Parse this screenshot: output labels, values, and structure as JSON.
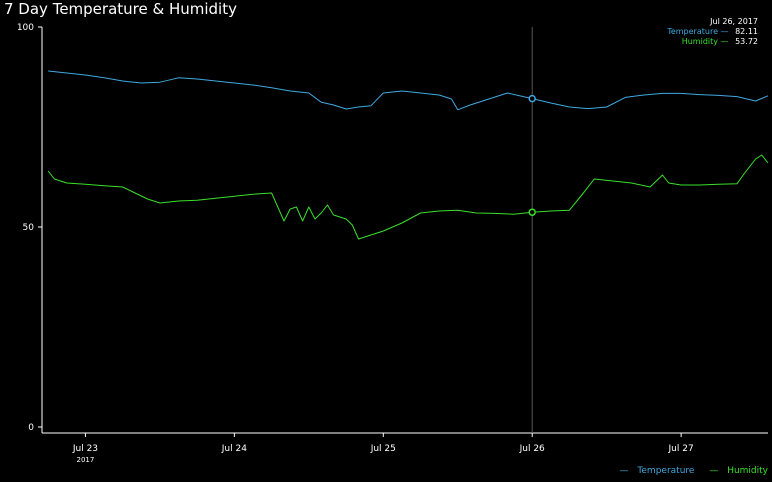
{
  "page": {
    "title": "7 Day Temperature & Humidity"
  },
  "colors": {
    "temperature": "#3fa9e0",
    "humidity": "#39e02a",
    "axis": "#ffffff",
    "cursor": "#555555"
  },
  "tooltip": {
    "date": "Jul 26, 2017",
    "rows": [
      {
        "name": "Temperature",
        "dash": "—",
        "value": "82.11"
      },
      {
        "name": "Humidity",
        "dash": "—",
        "value": "53.72"
      }
    ]
  },
  "legend": [
    {
      "name": "Temperature",
      "mark": "—"
    },
    {
      "name": "Humidity",
      "mark": "—"
    }
  ],
  "chart_data": {
    "type": "line",
    "title": "7 Day Temperature & Humidity",
    "xlabel": "",
    "ylabel": "",
    "ylim": [
      0,
      100
    ],
    "yticks": [
      "0",
      "50",
      "100"
    ],
    "xlim": [
      "2017-07-22 17:00",
      "2017-07-27 14:00"
    ],
    "xticks": [
      {
        "label": "Jul 23",
        "sub": "2017",
        "at": "2017-07-23 00:00"
      },
      {
        "label": "Jul 24",
        "sub": "",
        "at": "2017-07-24 00:00"
      },
      {
        "label": "Jul 25",
        "sub": "",
        "at": "2017-07-25 00:00"
      },
      {
        "label": "Jul 26",
        "sub": "",
        "at": "2017-07-26 00:00"
      },
      {
        "label": "Jul 27",
        "sub": "",
        "at": "2017-07-27 00:00"
      }
    ],
    "cursor": "2017-07-26 00:00",
    "grid": false,
    "legend_position": "bottom-right",
    "series": [
      {
        "name": "Temperature",
        "x": [
          "2017-07-22 18:00",
          "2017-07-22 21:00",
          "2017-07-23 00:00",
          "2017-07-23 03:00",
          "2017-07-23 06:00",
          "2017-07-23 09:00",
          "2017-07-23 12:00",
          "2017-07-23 15:00",
          "2017-07-23 18:00",
          "2017-07-23 21:00",
          "2017-07-24 00:00",
          "2017-07-24 03:00",
          "2017-07-24 06:00",
          "2017-07-24 09:00",
          "2017-07-24 12:00",
          "2017-07-24 14:00",
          "2017-07-24 16:00",
          "2017-07-24 18:00",
          "2017-07-24 20:00",
          "2017-07-24 22:00",
          "2017-07-25 00:00",
          "2017-07-25 03:00",
          "2017-07-25 06:00",
          "2017-07-25 09:00",
          "2017-07-25 11:00",
          "2017-07-25 12:00",
          "2017-07-25 14:00",
          "2017-07-25 17:00",
          "2017-07-25 20:00",
          "2017-07-26 00:00",
          "2017-07-26 03:00",
          "2017-07-26 06:00",
          "2017-07-26 09:00",
          "2017-07-26 12:00",
          "2017-07-26 15:00",
          "2017-07-26 18:00",
          "2017-07-26 21:00",
          "2017-07-27 00:00",
          "2017-07-27 03:00",
          "2017-07-27 06:00",
          "2017-07-27 09:00",
          "2017-07-27 12:00",
          "2017-07-27 14:00"
        ],
        "values": [
          89,
          88.5,
          88,
          87.3,
          86.5,
          86,
          86.2,
          87.3,
          87,
          86.5,
          86,
          85.5,
          84.8,
          84,
          83.5,
          81.2,
          80.5,
          79.5,
          80,
          80.3,
          83.5,
          84,
          83.5,
          83,
          82,
          79.3,
          80.5,
          82,
          83.5,
          82.1,
          81,
          80,
          79.6,
          80,
          82.4,
          83,
          83.4,
          83.4,
          83.1,
          82.9,
          82.6,
          81.5,
          82.8
        ]
      },
      {
        "name": "Humidity",
        "x": [
          "2017-07-22 18:00",
          "2017-07-22 19:00",
          "2017-07-22 21:00",
          "2017-07-23 00:00",
          "2017-07-23 03:00",
          "2017-07-23 06:00",
          "2017-07-23 08:00",
          "2017-07-23 10:00",
          "2017-07-23 12:00",
          "2017-07-23 15:00",
          "2017-07-23 18:00",
          "2017-07-23 21:00",
          "2017-07-24 00:00",
          "2017-07-24 03:00",
          "2017-07-24 06:00",
          "2017-07-24 08:00",
          "2017-07-24 09:00",
          "2017-07-24 10:00",
          "2017-07-24 11:00",
          "2017-07-24 12:00",
          "2017-07-24 13:00",
          "2017-07-24 14:00",
          "2017-07-24 15:00",
          "2017-07-24 16:00",
          "2017-07-24 17:00",
          "2017-07-24 18:00",
          "2017-07-24 19:00",
          "2017-07-24 20:00",
          "2017-07-24 21:00",
          "2017-07-24 22:00",
          "2017-07-25 00:00",
          "2017-07-25 03:00",
          "2017-07-25 06:00",
          "2017-07-25 09:00",
          "2017-07-25 12:00",
          "2017-07-25 15:00",
          "2017-07-25 18:00",
          "2017-07-25 21:00",
          "2017-07-26 00:00",
          "2017-07-26 03:00",
          "2017-07-26 06:00",
          "2017-07-26 08:00",
          "2017-07-26 10:00",
          "2017-07-26 13:00",
          "2017-07-26 16:00",
          "2017-07-26 19:00",
          "2017-07-26 21:00",
          "2017-07-26 22:00",
          "2017-07-27 00:00",
          "2017-07-27 03:00",
          "2017-07-27 06:00",
          "2017-07-27 09:00",
          "2017-07-27 10:00",
          "2017-07-27 11:00",
          "2017-07-27 12:00",
          "2017-07-27 13:00",
          "2017-07-27 14:00"
        ],
        "values": [
          64,
          62,
          61,
          60.7,
          60.3,
          60,
          58.5,
          57,
          56,
          56.5,
          56.7,
          57.2,
          57.7,
          58.2,
          58.5,
          51.5,
          54.5,
          55,
          51.5,
          55,
          52,
          53.5,
          55.5,
          53,
          52.5,
          52,
          50.5,
          47,
          47.5,
          48,
          49,
          51,
          53.5,
          54,
          54.2,
          53.5,
          53.4,
          53.2,
          53.7,
          54,
          54.2,
          58,
          62,
          61.5,
          61,
          60,
          63,
          61,
          60.5,
          60.5,
          60.7,
          60.8,
          63,
          65,
          67,
          68,
          66
        ]
      }
    ]
  }
}
